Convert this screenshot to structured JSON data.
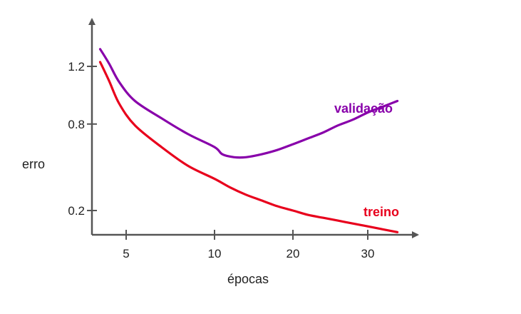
{
  "chart_data": {
    "type": "line",
    "title": "",
    "xlabel": "épocas",
    "ylabel": "erro",
    "x_ticks": [
      {
        "value": 5,
        "label": "5"
      },
      {
        "value": 10,
        "label": "10"
      },
      {
        "value": 20,
        "label": "20"
      },
      {
        "value": 30,
        "label": "30"
      }
    ],
    "y_ticks": [
      {
        "value": 0.2,
        "label": "0.2"
      },
      {
        "value": 0.8,
        "label": "0.8"
      },
      {
        "value": 1.2,
        "label": "1.2"
      }
    ],
    "grid": false,
    "legend": "inline labels at series ends",
    "series": [
      {
        "name": "validação",
        "color": "#8800aa",
        "points": [
          [
            1.2,
            1.32
          ],
          [
            2.5,
            1.22
          ],
          [
            4,
            1.09
          ],
          [
            5.5,
            0.96
          ],
          [
            7,
            0.84
          ],
          [
            8.5,
            0.73
          ],
          [
            10,
            0.64
          ],
          [
            11,
            0.59
          ],
          [
            12.5,
            0.57
          ],
          [
            14,
            0.57
          ],
          [
            16,
            0.59
          ],
          [
            18,
            0.62
          ],
          [
            20,
            0.66
          ],
          [
            22,
            0.7
          ],
          [
            24,
            0.74
          ],
          [
            26,
            0.79
          ],
          [
            28,
            0.83
          ],
          [
            30,
            0.88
          ],
          [
            32,
            0.92
          ],
          [
            34,
            0.96
          ]
        ]
      },
      {
        "name": "treino",
        "color": "#e8001c",
        "points": [
          [
            1.2,
            1.23
          ],
          [
            2.5,
            1.1
          ],
          [
            4,
            0.94
          ],
          [
            5.5,
            0.79
          ],
          [
            7,
            0.64
          ],
          [
            8.5,
            0.51
          ],
          [
            10,
            0.42
          ],
          [
            12,
            0.36
          ],
          [
            14,
            0.31
          ],
          [
            16,
            0.27
          ],
          [
            18,
            0.23
          ],
          [
            20,
            0.2
          ],
          [
            22,
            0.17
          ],
          [
            24,
            0.15
          ],
          [
            26,
            0.13
          ],
          [
            28,
            0.11
          ],
          [
            30,
            0.09
          ],
          [
            32,
            0.07
          ],
          [
            34,
            0.05
          ]
        ]
      }
    ]
  }
}
